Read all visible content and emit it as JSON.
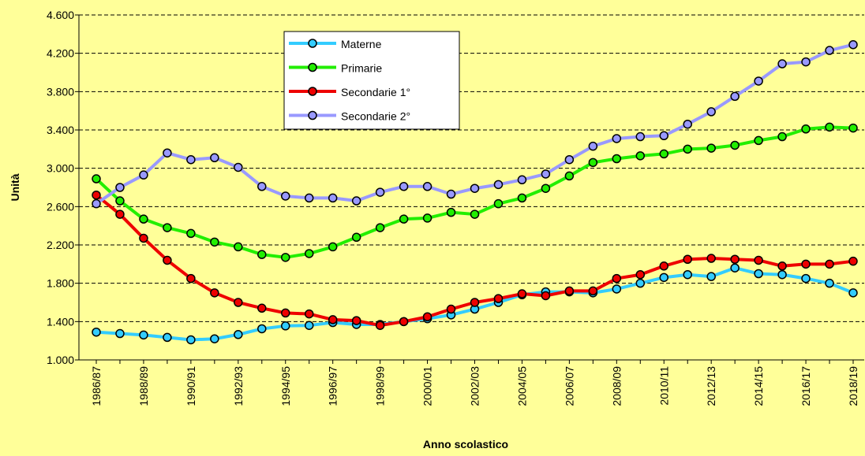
{
  "chart_data": {
    "type": "line",
    "x_label": "Anno scolastico",
    "y_label": "Unità",
    "categories": [
      "1986/87",
      null,
      "1988/89",
      null,
      "1990/91",
      null,
      "1992/93",
      null,
      "1994/95",
      null,
      "1996/97",
      null,
      "1998/99",
      null,
      "2000/01",
      null,
      "2002/03",
      null,
      "2004/05",
      null,
      "2006/07",
      null,
      "2008/09",
      null,
      "2010/11",
      null,
      "2012/13",
      null,
      "2014/15",
      null,
      "2016/17",
      null,
      "2018/19"
    ],
    "series": [
      {
        "name": "Materne",
        "color": "#33ccff",
        "values": [
          1290,
          1275,
          1260,
          1235,
          1210,
          1220,
          1265,
          1325,
          1355,
          1360,
          1390,
          1370,
          1370,
          1400,
          1430,
          1470,
          1530,
          1600,
          1680,
          1710,
          1710,
          1700,
          1740,
          1800,
          1860,
          1890,
          1870,
          1960,
          1900,
          1890,
          1850,
          1800,
          1700
        ]
      },
      {
        "name": "Primarie",
        "color": "#22ee00",
        "values": [
          2890,
          2660,
          2470,
          2380,
          2320,
          2230,
          2180,
          2100,
          2070,
          2110,
          2180,
          2280,
          2380,
          2470,
          2480,
          2540,
          2520,
          2630,
          2690,
          2790,
          2920,
          3060,
          3100,
          3130,
          3150,
          3200,
          3210,
          3240,
          3290,
          3330,
          3410,
          3430,
          3420
        ]
      },
      {
        "name": "Secondarie 1°",
        "color": "#ee0000",
        "values": [
          2720,
          2520,
          2270,
          2040,
          1850,
          1700,
          1600,
          1540,
          1490,
          1480,
          1420,
          1410,
          1360,
          1400,
          1450,
          1530,
          1600,
          1640,
          1690,
          1670,
          1720,
          1720,
          1850,
          1890,
          1980,
          2050,
          2060,
          2050,
          2040,
          1980,
          2000,
          2000,
          2030
        ]
      },
      {
        "name": "Secondarie 2°",
        "color": "#9999ff",
        "values": [
          2630,
          2800,
          2930,
          3160,
          3090,
          3110,
          3010,
          2810,
          2710,
          2690,
          2690,
          2660,
          2750,
          2810,
          2810,
          2730,
          2790,
          2830,
          2880,
          2940,
          3090,
          3230,
          3310,
          3330,
          3340,
          3460,
          3590,
          3750,
          3910,
          4090,
          4110,
          4230,
          4290
        ]
      }
    ],
    "ylim": [
      1000,
      4600
    ],
    "yticks": [
      {
        "value": 1000,
        "label": "1.000"
      },
      {
        "value": 1400,
        "label": "1.400"
      },
      {
        "value": 1800,
        "label": "1.800"
      },
      {
        "value": 2200,
        "label": "2.200"
      },
      {
        "value": 2600,
        "label": "2.600"
      },
      {
        "value": 3000,
        "label": "3.000"
      },
      {
        "value": 3400,
        "label": "3.400"
      },
      {
        "value": 3800,
        "label": "3.800"
      },
      {
        "value": 4200,
        "label": "4.200"
      },
      {
        "value": 4600,
        "label": "4.600"
      }
    ],
    "grid": true
  }
}
